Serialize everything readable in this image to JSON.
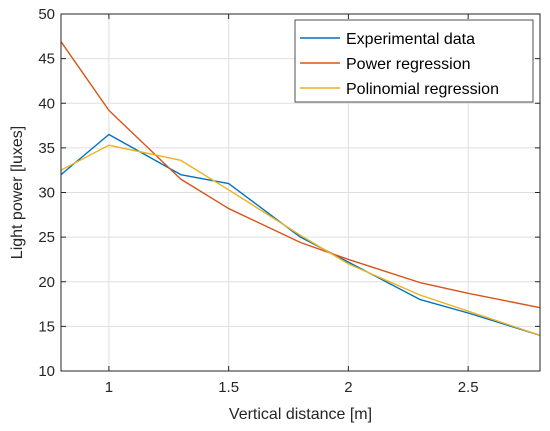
{
  "chart_data": {
    "type": "line",
    "title": "",
    "xlabel": "Vertical distance [m]",
    "ylabel": "Light power [luxes]",
    "xlim": [
      0.8,
      2.8
    ],
    "ylim": [
      10,
      50
    ],
    "grid": true,
    "legend_position": "top-right",
    "x_ticks": [
      1,
      1.5,
      2,
      2.5
    ],
    "x_tick_labels": [
      "1",
      "1.5",
      "2",
      "2.5"
    ],
    "y_ticks": [
      10,
      15,
      20,
      25,
      30,
      35,
      40,
      45,
      50
    ],
    "y_tick_labels": [
      "10",
      "15",
      "20",
      "25",
      "30",
      "35",
      "40",
      "45",
      "50"
    ],
    "series": [
      {
        "name": "Experimental data",
        "color": "#0072BD",
        "x": [
          0.8,
          1.0,
          1.3,
          1.5,
          1.8,
          2.0,
          2.3,
          2.5,
          2.8
        ],
        "y": [
          32.0,
          36.5,
          32.0,
          31.0,
          25.0,
          22.2,
          18.0,
          16.5,
          14.0
        ]
      },
      {
        "name": "Power regression",
        "color": "#D95319",
        "x": [
          0.8,
          1.0,
          1.3,
          1.5,
          1.8,
          2.0,
          2.3,
          2.5,
          2.8
        ],
        "y": [
          46.9,
          39.2,
          31.5,
          28.2,
          24.4,
          22.5,
          19.9,
          18.7,
          17.1
        ]
      },
      {
        "name": "Polinomial regression",
        "color": "#EDB120",
        "x": [
          0.8,
          1.0,
          1.3,
          1.5,
          1.8,
          2.0,
          2.3,
          2.5,
          2.8
        ],
        "y": [
          32.5,
          35.3,
          33.6,
          30.3,
          25.2,
          22.0,
          18.5,
          16.7,
          14.0
        ]
      }
    ]
  }
}
